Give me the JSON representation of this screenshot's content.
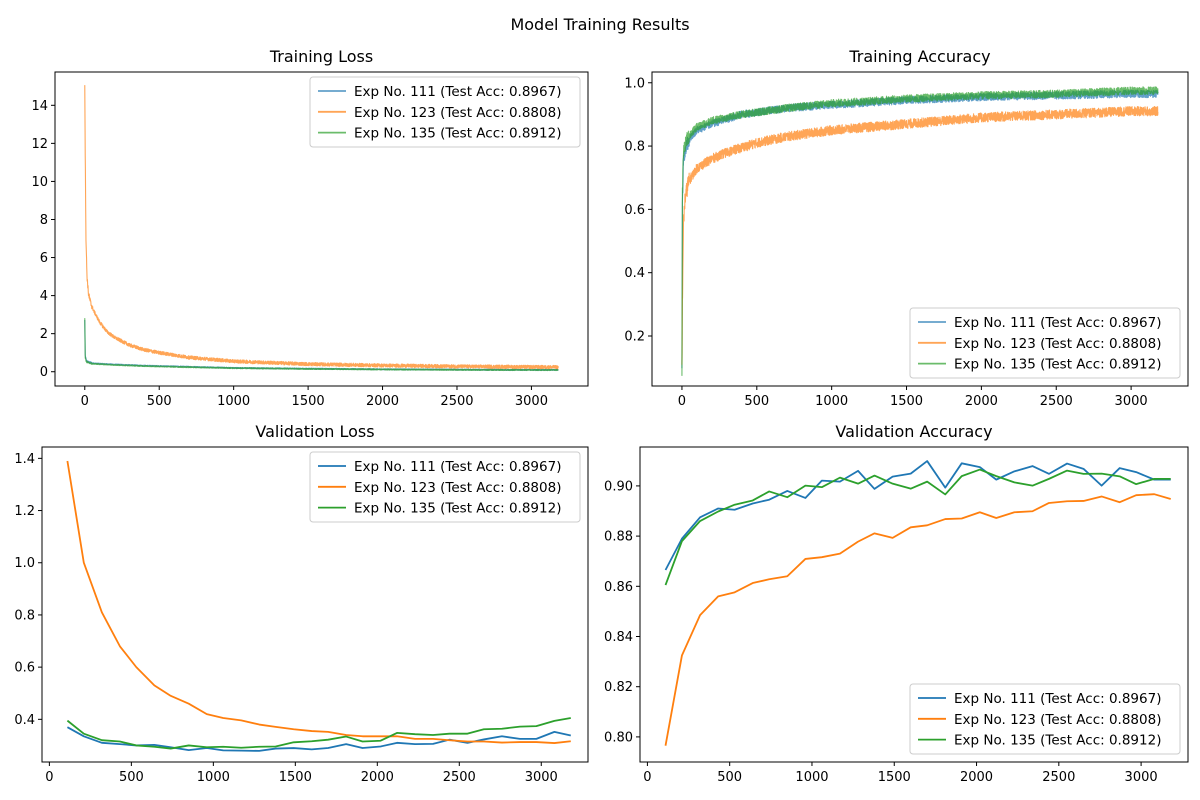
{
  "figure_title": "Model Training Results",
  "colors": {
    "exp111": "#1f77b4",
    "exp123": "#ff7f0e",
    "exp135": "#2ca02c"
  },
  "legend_labels": [
    "Exp No. 111 (Test Acc: 0.8967)",
    "Exp No. 123 (Test Acc: 0.8808)",
    "Exp No. 135 (Test Acc: 0.8912)"
  ],
  "chart_data": [
    {
      "id": "training_loss",
      "type": "line",
      "title": "Training Loss",
      "xlabel": "",
      "ylabel": "",
      "xlim": [
        -200,
        3380
      ],
      "ylim": [
        -0.75,
        15.75
      ],
      "xticks": [
        0,
        500,
        1000,
        1500,
        2000,
        2500,
        3000
      ],
      "yticks": [
        0,
        2,
        4,
        6,
        8,
        10,
        12,
        14
      ],
      "legend_position": "top-right",
      "noisy": true,
      "grid": false,
      "series": [
        {
          "name": "Exp No. 111 (Test Acc: 0.8967)",
          "color": "#1f77b4",
          "opacity": 0.7,
          "x": [
            0,
            3,
            10,
            20,
            50,
            100,
            200,
            400,
            700,
            1000,
            1500,
            2000,
            2500,
            3000,
            3180
          ],
          "y": [
            2.7,
            0.85,
            0.6,
            0.52,
            0.45,
            0.42,
            0.38,
            0.32,
            0.26,
            0.2,
            0.16,
            0.13,
            0.11,
            0.1,
            0.1
          ],
          "noise": 0.03
        },
        {
          "name": "Exp No. 123 (Test Acc: 0.8808)",
          "color": "#ff7f0e",
          "opacity": 0.7,
          "x": [
            0,
            3,
            8,
            15,
            25,
            40,
            60,
            100,
            150,
            200,
            300,
            400,
            500,
            700,
            1000,
            1500,
            2000,
            2500,
            3000,
            3180
          ],
          "y": [
            15.1,
            11.5,
            7.0,
            5.0,
            4.1,
            3.6,
            3.2,
            2.6,
            2.1,
            1.8,
            1.4,
            1.15,
            1.0,
            0.75,
            0.55,
            0.4,
            0.33,
            0.28,
            0.25,
            0.24
          ],
          "noise": 0.09
        },
        {
          "name": "Exp No. 135 (Test Acc: 0.8912)",
          "color": "#2ca02c",
          "opacity": 0.7,
          "x": [
            0,
            3,
            10,
            20,
            50,
            100,
            200,
            400,
            700,
            1000,
            1500,
            2000,
            2500,
            3000,
            3180
          ],
          "y": [
            2.8,
            0.75,
            0.55,
            0.48,
            0.42,
            0.4,
            0.36,
            0.3,
            0.24,
            0.19,
            0.15,
            0.12,
            0.1,
            0.09,
            0.09
          ],
          "noise": 0.03
        }
      ]
    },
    {
      "id": "training_accuracy",
      "type": "line",
      "title": "Training Accuracy",
      "xlabel": "",
      "ylabel": "",
      "xlim": [
        -200,
        3380
      ],
      "ylim": [
        0.042,
        1.034
      ],
      "xticks": [
        0,
        500,
        1000,
        1500,
        2000,
        2500,
        3000
      ],
      "yticks": [
        0.2,
        0.4,
        0.6,
        0.8,
        1.0
      ],
      "legend_position": "bottom-right",
      "noisy": true,
      "grid": false,
      "series": [
        {
          "name": "Exp No. 111 (Test Acc: 0.8967)",
          "color": "#1f77b4",
          "opacity": 0.7,
          "x": [
            0,
            3,
            10,
            30,
            60,
            100,
            200,
            400,
            700,
            1000,
            1500,
            2000,
            2500,
            3000,
            3180
          ],
          "y": [
            0.1,
            0.6,
            0.76,
            0.8,
            0.83,
            0.85,
            0.87,
            0.9,
            0.92,
            0.93,
            0.945,
            0.955,
            0.96,
            0.965,
            0.965
          ],
          "noise": 0.012
        },
        {
          "name": "Exp No. 123 (Test Acc: 0.8808)",
          "color": "#ff7f0e",
          "opacity": 0.7,
          "x": [
            0,
            3,
            10,
            20,
            40,
            60,
            100,
            200,
            300,
            500,
            700,
            1000,
            1500,
            2000,
            2500,
            3000,
            3180
          ],
          "y": [
            0.1,
            0.3,
            0.55,
            0.63,
            0.68,
            0.7,
            0.73,
            0.76,
            0.78,
            0.81,
            0.83,
            0.85,
            0.87,
            0.89,
            0.9,
            0.91,
            0.91
          ],
          "noise": 0.015
        },
        {
          "name": "Exp No. 135 (Test Acc: 0.8912)",
          "color": "#2ca02c",
          "opacity": 0.7,
          "x": [
            0,
            3,
            10,
            30,
            60,
            100,
            200,
            400,
            700,
            1000,
            1500,
            2000,
            2500,
            3000,
            3180
          ],
          "y": [
            0.09,
            0.65,
            0.78,
            0.82,
            0.84,
            0.86,
            0.88,
            0.9,
            0.92,
            0.935,
            0.95,
            0.96,
            0.965,
            0.975,
            0.975
          ],
          "noise": 0.012
        }
      ]
    },
    {
      "id": "validation_loss",
      "type": "line",
      "title": "Validation Loss",
      "xlabel": "",
      "ylabel": "",
      "xlim": [
        -45,
        3285
      ],
      "ylim": [
        0.2365,
        1.4435
      ],
      "xticks": [
        0,
        500,
        1000,
        1500,
        2000,
        2500,
        3000
      ],
      "yticks": [
        0.4,
        0.6,
        0.8,
        1.0,
        1.2,
        1.4
      ],
      "legend_position": "top-right",
      "noisy": false,
      "grid": false,
      "series": [
        {
          "name": "Exp No. 111 (Test Acc: 0.8967)",
          "color": "#1f77b4",
          "opacity": 1,
          "x": [
            110,
            210,
            320,
            430,
            530,
            640,
            740,
            850,
            960,
            1060,
            1170,
            1280,
            1380,
            1490,
            1600,
            1700,
            1810,
            1910,
            2020,
            2120,
            2230,
            2340,
            2440,
            2550,
            2650,
            2760,
            2870,
            2970,
            3080,
            3180
          ],
          "y": [
            0.37,
            0.335,
            0.31,
            0.305,
            0.3,
            0.302,
            0.293,
            0.282,
            0.29,
            0.281,
            0.28,
            0.279,
            0.288,
            0.29,
            0.285,
            0.29,
            0.305,
            0.29,
            0.296,
            0.31,
            0.305,
            0.306,
            0.322,
            0.31,
            0.323,
            0.335,
            0.325,
            0.325,
            0.352,
            0.338
          ]
        },
        {
          "name": "Exp No. 123 (Test Acc: 0.8808)",
          "color": "#ff7f0e",
          "opacity": 1,
          "x": [
            110,
            210,
            320,
            430,
            530,
            640,
            740,
            850,
            960,
            1060,
            1170,
            1280,
            1380,
            1490,
            1600,
            1700,
            1810,
            1910,
            2020,
            2120,
            2230,
            2340,
            2440,
            2550,
            2650,
            2760,
            2870,
            2970,
            3080,
            3180
          ],
          "y": [
            1.39,
            1.0,
            0.81,
            0.68,
            0.6,
            0.53,
            0.49,
            0.46,
            0.42,
            0.405,
            0.396,
            0.38,
            0.371,
            0.362,
            0.355,
            0.352,
            0.34,
            0.335,
            0.335,
            0.335,
            0.325,
            0.325,
            0.32,
            0.315,
            0.315,
            0.311,
            0.313,
            0.313,
            0.309,
            0.316
          ]
        },
        {
          "name": "Exp No. 135 (Test Acc: 0.8912)",
          "color": "#2ca02c",
          "opacity": 1,
          "x": [
            110,
            210,
            320,
            430,
            530,
            640,
            740,
            850,
            960,
            1060,
            1170,
            1280,
            1380,
            1490,
            1600,
            1700,
            1810,
            1910,
            2020,
            2120,
            2230,
            2340,
            2440,
            2550,
            2650,
            2760,
            2870,
            2970,
            3080,
            3180
          ],
          "y": [
            0.395,
            0.345,
            0.32,
            0.315,
            0.3,
            0.295,
            0.288,
            0.3,
            0.293,
            0.295,
            0.291,
            0.295,
            0.296,
            0.312,
            0.316,
            0.322,
            0.334,
            0.315,
            0.318,
            0.348,
            0.343,
            0.34,
            0.345,
            0.345,
            0.362,
            0.364,
            0.372,
            0.374,
            0.394,
            0.405
          ]
        }
      ]
    },
    {
      "id": "validation_accuracy",
      "type": "line",
      "title": "Validation Accuracy",
      "xlabel": "",
      "ylabel": "",
      "xlim": [
        -45,
        3285
      ],
      "ylim": [
        0.79,
        0.9155
      ],
      "xticks": [
        0,
        500,
        1000,
        1500,
        2000,
        2500,
        3000
      ],
      "yticks": [
        0.8,
        0.82,
        0.84,
        0.86,
        0.88,
        0.9
      ],
      "legend_position": "bottom-right",
      "noisy": false,
      "grid": false,
      "series": [
        {
          "name": "Exp No. 111 (Test Acc: 0.8967)",
          "color": "#1f77b4",
          "opacity": 1,
          "x": [
            110,
            210,
            320,
            430,
            530,
            640,
            740,
            850,
            960,
            1060,
            1170,
            1280,
            1380,
            1490,
            1600,
            1700,
            1810,
            1910,
            2020,
            2120,
            2230,
            2340,
            2440,
            2550,
            2650,
            2760,
            2870,
            2970,
            3080,
            3180
          ],
          "y": [
            0.8665,
            0.879,
            0.8875,
            0.891,
            0.8905,
            0.893,
            0.8945,
            0.898,
            0.8952,
            0.9021,
            0.9017,
            0.906,
            0.8988,
            0.9037,
            0.9049,
            0.9099,
            0.8993,
            0.909,
            0.9075,
            0.9025,
            0.9058,
            0.9079,
            0.9048,
            0.9089,
            0.9068,
            0.9001,
            0.9071,
            0.9055,
            0.9025,
            0.9025
          ]
        },
        {
          "name": "Exp No. 123 (Test Acc: 0.8808)",
          "color": "#ff7f0e",
          "opacity": 1,
          "x": [
            110,
            210,
            320,
            430,
            530,
            640,
            740,
            850,
            960,
            1060,
            1170,
            1280,
            1380,
            1490,
            1600,
            1700,
            1810,
            1910,
            2020,
            2120,
            2230,
            2340,
            2440,
            2550,
            2650,
            2760,
            2870,
            2970,
            3080,
            3180
          ],
          "y": [
            0.7965,
            0.8325,
            0.8485,
            0.856,
            0.8576,
            0.8613,
            0.8628,
            0.864,
            0.8709,
            0.8716,
            0.873,
            0.8778,
            0.8811,
            0.8793,
            0.8835,
            0.8843,
            0.8868,
            0.887,
            0.8895,
            0.8872,
            0.8895,
            0.8899,
            0.8932,
            0.8939,
            0.894,
            0.8958,
            0.8935,
            0.8963,
            0.8967,
            0.8948
          ]
        },
        {
          "name": "Exp No. 135 (Test Acc: 0.8912)",
          "color": "#2ca02c",
          "opacity": 1,
          "x": [
            110,
            210,
            320,
            430,
            530,
            640,
            740,
            850,
            960,
            1060,
            1170,
            1280,
            1380,
            1490,
            1600,
            1700,
            1810,
            1910,
            2020,
            2120,
            2230,
            2340,
            2440,
            2550,
            2650,
            2760,
            2870,
            2970,
            3080,
            3180
          ],
          "y": [
            0.8605,
            0.878,
            0.886,
            0.8898,
            0.8925,
            0.8942,
            0.8978,
            0.8955,
            0.9001,
            0.8995,
            0.9033,
            0.9009,
            0.9041,
            0.9009,
            0.8989,
            0.9017,
            0.8966,
            0.9039,
            0.9065,
            0.9039,
            0.9014,
            0.9001,
            0.9028,
            0.9061,
            0.9048,
            0.9049,
            0.9038,
            0.9007,
            0.9028,
            0.9028
          ]
        }
      ]
    }
  ]
}
